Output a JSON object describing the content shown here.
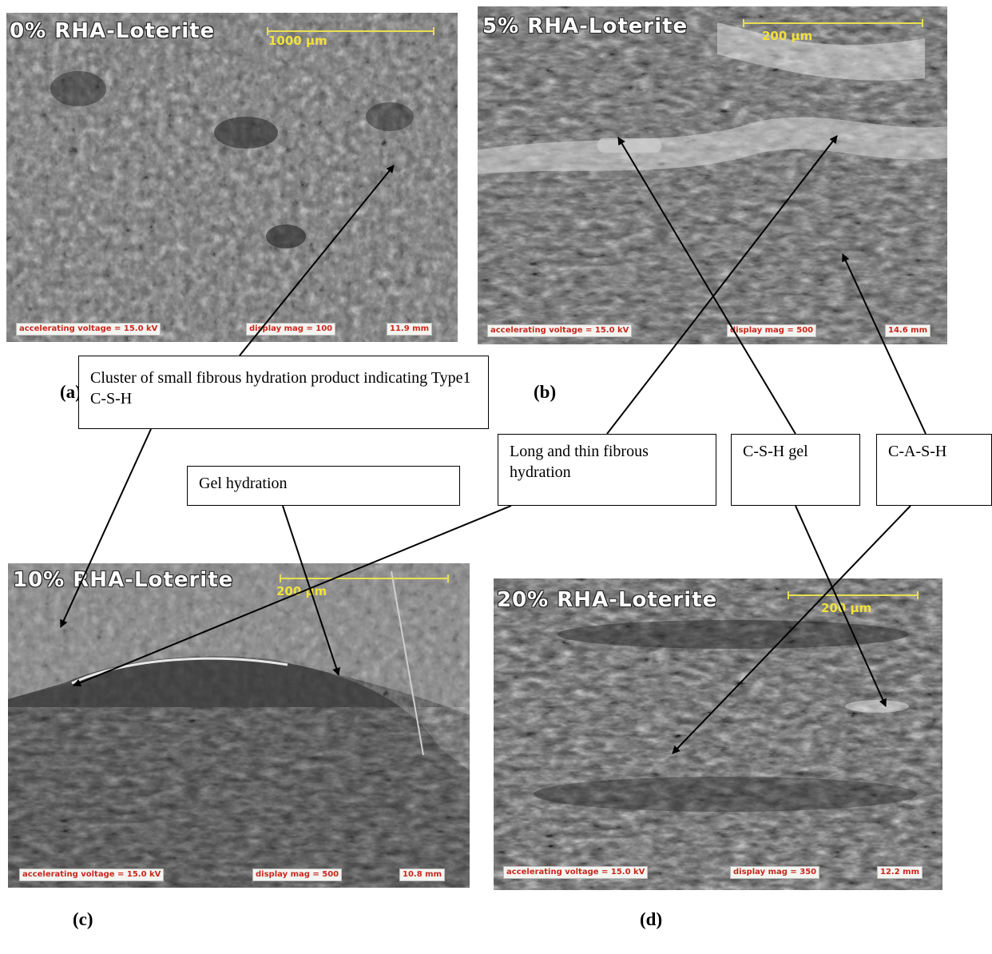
{
  "panels": {
    "a": {
      "title": "0% RHA-Loterite",
      "scale": "1000 μm",
      "voltage": "accelerating voltage = 15.0 kV",
      "mag": "display mag = 100",
      "dist": "11.9 mm",
      "label": "(a)"
    },
    "b": {
      "title": "5% RHA-Loterite",
      "scale": "200 μm",
      "voltage": "accelerating voltage = 15.0 kV",
      "mag": "display mag = 500",
      "dist": "14.6 mm",
      "label": "(b)"
    },
    "c": {
      "title": "10% RHA-Loterite",
      "scale": "200 μm",
      "voltage": "accelerating voltage = 15.0 kV",
      "mag": "display mag = 500",
      "dist": "10.8 mm",
      "label": "(c)"
    },
    "d": {
      "title": "20% RHA-Loterite",
      "scale": "200 μm",
      "voltage": "accelerating voltage = 15.0 kV",
      "mag": "display mag = 350",
      "dist": "12.2 mm",
      "label": "(d)"
    }
  },
  "callouts": {
    "cluster": "Cluster of small fibrous hydration product indicating Type1 C-S-H",
    "gel_hydration": "Gel hydration",
    "long_thin": "Long and thin fibrous hydration",
    "csh_gel": "C-S-H gel",
    "cash": "C-A-S-H"
  }
}
